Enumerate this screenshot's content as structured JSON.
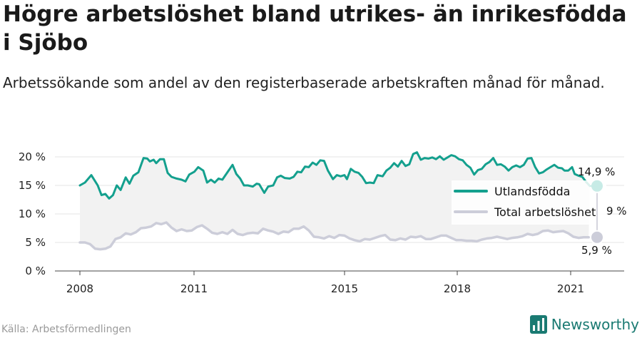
{
  "header": {
    "title": "Högre arbetslöshet bland utrikes- än inrikesfödda i Sjöbo",
    "subtitle": "Arbetssökande som andel av den registerbaserade arbetskraften månad för månad."
  },
  "footer": {
    "source": "Källa: Arbetsförmedlingen",
    "brand": "Newsworthy"
  },
  "colors": {
    "utlandsfodda": "#14a08e",
    "total": "#cccdd9",
    "brand": "#1a7a72"
  },
  "end_labels": {
    "utlandsfodda": "14,9 %",
    "total": "5,9 %",
    "hidden_partial": "9 %"
  },
  "chart_data": {
    "type": "line",
    "title": "",
    "xlabel": "",
    "ylabel": "",
    "x_start": "2008-01",
    "x_end": "2022-01",
    "x_ticks": [
      "2008",
      "2011",
      "2015",
      "2018",
      "2021"
    ],
    "y_ticks": [
      "0 %",
      "5 %",
      "10 %",
      "15 %",
      "20 %"
    ],
    "ylim": [
      0,
      20
    ],
    "grid": true,
    "legend_position": "right",
    "series": [
      {
        "name": "Utlandsfödda",
        "color": "#14a08e",
        "values": [
          [
            2008.0,
            15.0
          ],
          [
            2008.2,
            15.5
          ],
          [
            2008.45,
            16.8
          ],
          [
            2008.7,
            15.0
          ],
          [
            2008.85,
            13.3
          ],
          [
            2009.0,
            13.5
          ],
          [
            2009.15,
            12.7
          ],
          [
            2009.3,
            13.3
          ],
          [
            2009.45,
            15.0
          ],
          [
            2009.6,
            14.2
          ],
          [
            2009.8,
            16.4
          ],
          [
            2009.95,
            15.3
          ],
          [
            2010.1,
            16.7
          ],
          [
            2010.3,
            17.3
          ],
          [
            2010.5,
            19.8
          ],
          [
            2010.65,
            19.7
          ],
          [
            2010.75,
            19.2
          ],
          [
            2010.9,
            19.5
          ],
          [
            2011.0,
            18.9
          ],
          [
            2011.15,
            19.6
          ],
          [
            2011.3,
            19.6
          ],
          [
            2011.45,
            17.2
          ],
          [
            2011.6,
            16.5
          ],
          [
            2011.8,
            16.2
          ],
          [
            2012.0,
            16.0
          ],
          [
            2012.15,
            15.7
          ],
          [
            2012.3,
            16.9
          ],
          [
            2012.5,
            17.4
          ],
          [
            2012.65,
            18.2
          ],
          [
            2012.85,
            17.6
          ],
          [
            2013.0,
            15.5
          ],
          [
            2013.15,
            16.0
          ],
          [
            2013.3,
            15.5
          ],
          [
            2013.45,
            16.2
          ],
          [
            2013.6,
            16.0
          ],
          [
            2013.8,
            17.3
          ],
          [
            2014.0,
            18.6
          ],
          [
            2014.15,
            17.0
          ],
          [
            2014.3,
            16.2
          ],
          [
            2014.45,
            15.0
          ],
          [
            2014.6,
            15.0
          ],
          [
            2014.8,
            14.8
          ],
          [
            2014.95,
            15.3
          ],
          [
            2015.05,
            15.2
          ],
          [
            2015.25,
            13.7
          ],
          [
            2015.4,
            14.8
          ],
          [
            2015.6,
            15.0
          ],
          [
            2015.75,
            16.4
          ],
          [
            2015.9,
            16.7
          ],
          [
            2016.05,
            16.3
          ],
          [
            2016.25,
            16.2
          ],
          [
            2016.4,
            16.5
          ],
          [
            2016.55,
            17.4
          ],
          [
            2016.7,
            17.3
          ],
          [
            2016.85,
            18.3
          ],
          [
            2017.0,
            18.2
          ],
          [
            2017.15,
            19.0
          ],
          [
            2017.3,
            18.6
          ],
          [
            2017.45,
            19.4
          ],
          [
            2017.6,
            19.3
          ],
          [
            2017.75,
            17.6
          ],
          [
            2017.95,
            16.1
          ],
          [
            2018.1,
            16.8
          ],
          [
            2018.25,
            16.6
          ],
          [
            2018.4,
            16.8
          ],
          [
            2018.5,
            16.1
          ],
          [
            2018.65,
            17.9
          ],
          [
            2018.8,
            17.4
          ],
          [
            2018.95,
            17.2
          ],
          [
            2019.1,
            16.5
          ],
          [
            2019.25,
            15.4
          ],
          [
            2019.4,
            15.5
          ],
          [
            2019.55,
            15.4
          ],
          [
            2019.7,
            16.8
          ],
          [
            2019.9,
            16.6
          ],
          [
            2020.05,
            17.6
          ],
          [
            2020.2,
            18.1
          ],
          [
            2020.35,
            18.9
          ],
          [
            2020.5,
            18.3
          ],
          [
            2020.65,
            19.3
          ],
          [
            2020.8,
            18.4
          ],
          [
            2020.95,
            18.7
          ],
          [
            2021.1,
            20.5
          ],
          [
            2021.25,
            20.8
          ],
          [
            2021.4,
            19.5
          ],
          [
            2021.55,
            19.8
          ],
          [
            2021.7,
            19.7
          ],
          [
            2021.85,
            19.9
          ],
          [
            2022.0,
            19.6
          ],
          [
            2022.15,
            20.1
          ],
          [
            2022.3,
            19.5
          ],
          [
            2022.45,
            19.9
          ],
          [
            2022.6,
            20.3
          ],
          [
            2022.75,
            20.1
          ],
          [
            2022.9,
            19.6
          ],
          [
            2023.05,
            19.4
          ],
          [
            2023.2,
            18.6
          ],
          [
            2023.35,
            18.1
          ],
          [
            2023.5,
            16.9
          ],
          [
            2023.65,
            17.7
          ],
          [
            2023.8,
            17.9
          ],
          [
            2023.95,
            18.7
          ],
          [
            2024.1,
            19.1
          ],
          [
            2024.25,
            19.8
          ],
          [
            2024.4,
            18.6
          ],
          [
            2024.55,
            18.7
          ],
          [
            2024.7,
            18.3
          ],
          [
            2024.85,
            17.6
          ],
          [
            2025.0,
            18.2
          ],
          [
            2025.15,
            18.5
          ],
          [
            2025.3,
            18.2
          ],
          [
            2025.45,
            18.6
          ],
          [
            2025.6,
            19.7
          ],
          [
            2025.75,
            19.8
          ],
          [
            2025.9,
            18.2
          ],
          [
            2026.05,
            17.1
          ],
          [
            2026.2,
            17.3
          ],
          [
            2026.35,
            17.8
          ],
          [
            2026.5,
            18.2
          ],
          [
            2026.65,
            18.6
          ],
          [
            2026.8,
            18.1
          ],
          [
            2026.95,
            18.0
          ],
          [
            2027.05,
            17.6
          ],
          [
            2027.2,
            17.6
          ],
          [
            2027.35,
            18.2
          ],
          [
            2027.45,
            17.0
          ],
          [
            2027.6,
            16.7
          ],
          [
            2027.75,
            16.5
          ],
          [
            2027.9,
            15.6
          ],
          [
            2028.05,
            14.9
          ]
        ]
      },
      {
        "name": "Total arbetslöshet",
        "color": "#cccdd9",
        "values": [
          [
            2008.0,
            5.0
          ],
          [
            2008.2,
            5.0
          ],
          [
            2008.4,
            4.7
          ],
          [
            2008.6,
            3.9
          ],
          [
            2008.8,
            3.8
          ],
          [
            2009.0,
            3.9
          ],
          [
            2009.2,
            4.3
          ],
          [
            2009.4,
            5.6
          ],
          [
            2009.6,
            5.9
          ],
          [
            2009.8,
            6.6
          ],
          [
            2010.0,
            6.4
          ],
          [
            2010.2,
            6.8
          ],
          [
            2010.4,
            7.5
          ],
          [
            2010.6,
            7.6
          ],
          [
            2010.8,
            7.8
          ],
          [
            2011.0,
            8.4
          ],
          [
            2011.2,
            8.2
          ],
          [
            2011.4,
            8.5
          ],
          [
            2011.6,
            7.6
          ],
          [
            2011.8,
            7.0
          ],
          [
            2012.0,
            7.3
          ],
          [
            2012.2,
            7.0
          ],
          [
            2012.4,
            7.1
          ],
          [
            2012.6,
            7.7
          ],
          [
            2012.8,
            8.0
          ],
          [
            2013.0,
            7.4
          ],
          [
            2013.2,
            6.7
          ],
          [
            2013.4,
            6.5
          ],
          [
            2013.6,
            6.8
          ],
          [
            2013.8,
            6.5
          ],
          [
            2014.0,
            7.2
          ],
          [
            2014.2,
            6.5
          ],
          [
            2014.4,
            6.3
          ],
          [
            2014.6,
            6.6
          ],
          [
            2014.8,
            6.7
          ],
          [
            2015.0,
            6.6
          ],
          [
            2015.2,
            7.4
          ],
          [
            2015.4,
            7.1
          ],
          [
            2015.6,
            6.9
          ],
          [
            2015.8,
            6.5
          ],
          [
            2016.0,
            6.9
          ],
          [
            2016.2,
            6.8
          ],
          [
            2016.4,
            7.4
          ],
          [
            2016.6,
            7.4
          ],
          [
            2016.8,
            7.8
          ],
          [
            2017.0,
            7.1
          ],
          [
            2017.2,
            6.0
          ],
          [
            2017.4,
            5.9
          ],
          [
            2017.6,
            5.7
          ],
          [
            2017.8,
            6.1
          ],
          [
            2018.0,
            5.8
          ],
          [
            2018.2,
            6.3
          ],
          [
            2018.4,
            6.2
          ],
          [
            2018.6,
            5.7
          ],
          [
            2018.8,
            5.4
          ],
          [
            2019.0,
            5.2
          ],
          [
            2019.2,
            5.6
          ],
          [
            2019.4,
            5.5
          ],
          [
            2019.6,
            5.8
          ],
          [
            2019.8,
            6.1
          ],
          [
            2020.0,
            6.3
          ],
          [
            2020.2,
            5.5
          ],
          [
            2020.4,
            5.4
          ],
          [
            2020.6,
            5.7
          ],
          [
            2020.8,
            5.5
          ],
          [
            2021.0,
            6.0
          ],
          [
            2021.2,
            5.9
          ],
          [
            2021.4,
            6.1
          ],
          [
            2021.6,
            5.6
          ],
          [
            2021.8,
            5.6
          ],
          [
            2022.0,
            5.9
          ],
          [
            2022.2,
            6.2
          ],
          [
            2022.4,
            6.2
          ],
          [
            2022.6,
            5.8
          ],
          [
            2022.8,
            5.4
          ],
          [
            2023.0,
            5.4
          ],
          [
            2023.2,
            5.3
          ],
          [
            2023.4,
            5.3
          ],
          [
            2023.6,
            5.2
          ],
          [
            2023.8,
            5.5
          ],
          [
            2024.0,
            5.7
          ],
          [
            2024.2,
            5.8
          ],
          [
            2024.4,
            6.0
          ],
          [
            2024.6,
            5.8
          ],
          [
            2024.8,
            5.6
          ],
          [
            2025.0,
            5.8
          ],
          [
            2025.2,
            5.9
          ],
          [
            2025.4,
            6.1
          ],
          [
            2025.6,
            6.5
          ],
          [
            2025.8,
            6.3
          ],
          [
            2026.0,
            6.5
          ],
          [
            2026.2,
            7.0
          ],
          [
            2026.4,
            7.1
          ],
          [
            2026.6,
            6.8
          ],
          [
            2026.8,
            6.9
          ],
          [
            2027.0,
            7.0
          ],
          [
            2027.2,
            6.6
          ],
          [
            2027.4,
            6.0
          ],
          [
            2027.6,
            5.8
          ],
          [
            2027.8,
            5.9
          ],
          [
            2028.0,
            5.9
          ]
        ]
      }
    ]
  }
}
